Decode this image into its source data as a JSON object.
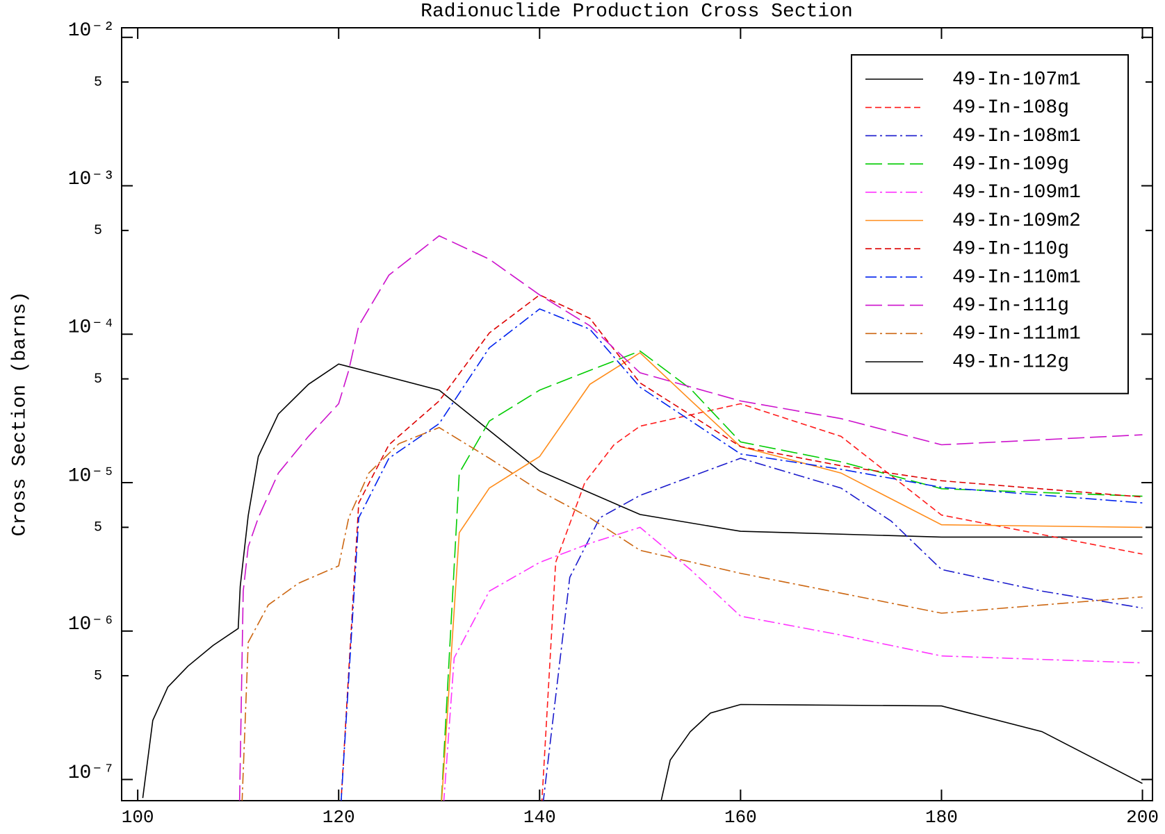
{
  "chart_data": {
    "type": "line",
    "title": "Radionuclide Production Cross Section",
    "y_label": "Cross Section (barns)",
    "log_y": true,
    "legend": "upper right",
    "xlim": [
      98.4,
      201
    ],
    "xticks": [
      100,
      120,
      140,
      160,
      180,
      200
    ],
    "ylim": [
      7.2e-08,
      0.0116
    ],
    "yticks": [
      {
        "value": 1e-07,
        "label": "10⁻⁷"
      },
      {
        "value": 5e-07,
        "label": "5"
      },
      {
        "value": 1e-06,
        "label": "10⁻⁶"
      },
      {
        "value": 5e-06,
        "label": "5"
      },
      {
        "value": 1e-05,
        "label": "10⁻⁵"
      },
      {
        "value": 5e-05,
        "label": "5"
      },
      {
        "value": 0.0001,
        "label": "10⁻⁴"
      },
      {
        "value": 0.0005,
        "label": "5"
      },
      {
        "value": 0.001,
        "label": "10⁻³"
      },
      {
        "value": 0.005,
        "label": "5"
      },
      {
        "value": 0.01,
        "label": "10⁻²"
      }
    ],
    "series": [
      {
        "name": "49-In-107m1",
        "color": "#000000",
        "dash": "solid",
        "x": [
          100.5,
          101.5,
          103,
          105,
          107.5,
          110,
          110.2,
          111,
          112,
          114,
          117,
          120,
          130,
          140,
          150,
          160,
          180,
          200
        ],
        "values": [
          7.5e-08,
          2.5e-07,
          4.2e-07,
          5.8e-07,
          8e-07,
          1.04e-06,
          2e-06,
          6e-06,
          1.5e-05,
          2.9e-05,
          4.6e-05,
          6.3e-05,
          4.2e-05,
          1.2e-05,
          6.1e-06,
          4.7e-06,
          4.3e-06,
          4.3e-06
        ]
      },
      {
        "name": "49-In-108g",
        "color": "#ff1a1a",
        "dash": "dashed",
        "x": [
          140.1,
          141.6,
          144.5,
          147.4,
          150,
          160,
          170,
          180,
          200
        ],
        "values": [
          5e-08,
          2.9e-06,
          1e-05,
          1.8e-05,
          2.4e-05,
          3.4e-05,
          2.05e-05,
          6.05e-06,
          3.3e-06
        ]
      },
      {
        "name": "49-In-108m1",
        "color": "#1a1acc",
        "dash": "dashdot",
        "x": [
          140.1,
          143,
          146,
          150,
          160,
          170,
          175,
          180,
          190,
          200
        ],
        "values": [
          5e-08,
          2.3e-06,
          5.8e-06,
          8.2e-06,
          1.46e-05,
          9.2e-06,
          5.5e-06,
          2.6e-06,
          1.86e-06,
          1.43e-06
        ]
      },
      {
        "name": "49-In-109g",
        "color": "#00cc00",
        "dash": "longdash",
        "x": [
          130.1,
          132,
          135,
          140,
          145,
          150,
          155,
          160,
          170,
          180,
          200
        ],
        "values": [
          5e-08,
          1.16e-05,
          2.6e-05,
          4.2e-05,
          5.7e-05,
          7.7e-05,
          4.3e-05,
          1.88e-05,
          1.38e-05,
          9.1e-06,
          8.1e-06
        ]
      },
      {
        "name": "49-In-109m1",
        "color": "#ff33ff",
        "dash": "dashdot",
        "x": [
          130.3,
          131.5,
          135,
          140,
          145,
          150,
          155,
          160,
          170,
          180,
          200
        ],
        "values": [
          5e-08,
          6.6e-07,
          1.86e-06,
          2.9e-06,
          3.9e-06,
          5e-06,
          2.6e-06,
          1.26e-06,
          9.4e-07,
          6.8e-07,
          6.1e-07
        ]
      },
      {
        "name": "49-In-109m2",
        "color": "#ff8c1a",
        "dash": "solid",
        "x": [
          130.1,
          132,
          135,
          140,
          145,
          150,
          155,
          160,
          170,
          180,
          200
        ],
        "values": [
          5e-08,
          4.6e-06,
          9.2e-06,
          1.5e-05,
          4.6e-05,
          7.5e-05,
          3.6e-05,
          1.75e-05,
          1.16e-05,
          5.2e-06,
          5e-06
        ]
      },
      {
        "name": "49-In-110g",
        "color": "#dd0000",
        "dash": "dashed",
        "x": [
          120.1,
          122,
          125,
          130,
          135,
          140,
          145,
          150,
          160,
          170,
          180,
          200
        ],
        "values": [
          5e-08,
          7.3e-06,
          1.8e-05,
          3.55e-05,
          0.000102,
          0.000184,
          0.000128,
          4.7e-05,
          1.75e-05,
          1.3e-05,
          1.03e-05,
          8e-06
        ]
      },
      {
        "name": "49-In-110m1",
        "color": "#0022ee",
        "dash": "dashdot",
        "x": [
          120.1,
          122,
          125,
          130,
          135,
          140,
          145,
          150,
          160,
          170,
          180,
          200
        ],
        "values": [
          5e-08,
          5.8e-06,
          1.46e-05,
          2.5e-05,
          8.1e-05,
          0.000148,
          0.000108,
          4.4e-05,
          1.56e-05,
          1.23e-05,
          9.3e-06,
          7.3e-06
        ]
      },
      {
        "name": "49-In-111g",
        "color": "#cc11cc",
        "dash": "longdash",
        "x": [
          110.1,
          110.5,
          111,
          112,
          114,
          117,
          120,
          121,
          122,
          125,
          130,
          135,
          140,
          145,
          150,
          160,
          170,
          180,
          200
        ],
        "values": [
          5e-08,
          1.86e-06,
          3.7e-06,
          5.8e-06,
          1.16e-05,
          2.05e-05,
          3.4e-05,
          5.7e-05,
          0.000114,
          0.00025,
          0.00046,
          0.00032,
          0.000184,
          0.000114,
          5.5e-05,
          3.55e-05,
          2.7e-05,
          1.8e-05,
          2.1e-05
        ]
      },
      {
        "name": "49-In-111m1",
        "color": "#cc6611",
        "dash": "dashdot",
        "x": [
          110.3,
          111,
          113,
          116,
          120,
          121,
          123,
          126,
          130,
          135,
          140,
          145,
          150,
          160,
          170,
          180,
          200
        ],
        "values": [
          5e-08,
          8.4e-07,
          1.5e-06,
          2.1e-06,
          2.75e-06,
          5.8e-06,
          1.16e-05,
          1.83e-05,
          2.35e-05,
          1.46e-05,
          8.8e-06,
          5.8e-06,
          3.5e-06,
          2.45e-06,
          1.8e-06,
          1.32e-06,
          1.7e-06
        ]
      },
      {
        "name": "49-In-112g",
        "color": "#000000",
        "dash": "solid",
        "x": [
          152.1,
          153,
          155,
          157,
          160,
          180,
          190,
          200
        ],
        "values": [
          7.2e-08,
          1.35e-07,
          2.1e-07,
          2.8e-07,
          3.2e-07,
          3.13e-07,
          2.1e-07,
          9.4e-08
        ]
      }
    ]
  }
}
